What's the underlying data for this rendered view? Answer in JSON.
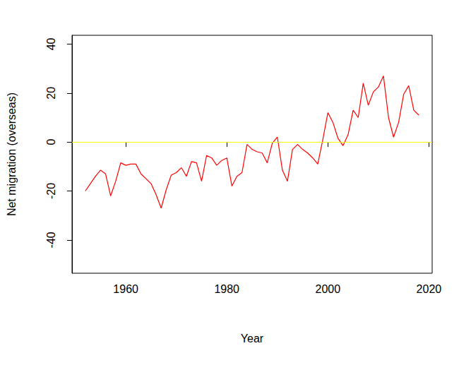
{
  "chart_data": {
    "type": "line",
    "x_label": "Year",
    "y_label": "Net migration (overseas)",
    "x": [
      1952,
      1953,
      1954,
      1955,
      1956,
      1957,
      1958,
      1959,
      1960,
      1961,
      1962,
      1963,
      1964,
      1965,
      1966,
      1967,
      1968,
      1969,
      1970,
      1971,
      1972,
      1973,
      1974,
      1975,
      1976,
      1977,
      1978,
      1979,
      1980,
      1981,
      1982,
      1983,
      1984,
      1985,
      1986,
      1987,
      1988,
      1989,
      1990,
      1991,
      1992,
      1993,
      1994,
      1995,
      1996,
      1997,
      1998,
      1999,
      2000,
      2001,
      2002,
      2003,
      2004,
      2005,
      2006,
      2007,
      2008,
      2009,
      2010,
      2011,
      2012,
      2013,
      2014,
      2015,
      2016,
      2017,
      2018
    ],
    "values": [
      -20,
      -17,
      -14,
      -11.5,
      -13,
      -22,
      -16,
      -8.5,
      -9.5,
      -9,
      -9,
      -13,
      -15,
      -17,
      -21.5,
      -27,
      -19.5,
      -13.5,
      -12.5,
      -10.5,
      -14,
      -8,
      -8.5,
      -16,
      -5.5,
      -6.5,
      -9.5,
      -7.5,
      -6.5,
      -18,
      -14,
      -12.5,
      -1,
      -3,
      -4,
      -4.5,
      -8.5,
      -0.5,
      2,
      -11.5,
      -16,
      -3,
      -1,
      -3,
      -4.5,
      -6.5,
      -9,
      1,
      12,
      8,
      1.5,
      -1.5,
      3,
      13,
      10,
      24,
      15,
      20.5,
      22.5,
      27,
      10,
      2,
      8,
      19.5,
      23,
      13,
      11
    ],
    "color": "#ff0000",
    "xlim": [
      1949.36,
      2020.64
    ],
    "xticks": [
      1960,
      1980,
      2000,
      2020
    ],
    "ylim": [
      -53.6,
      43.6
    ],
    "yticks": [
      -40,
      -20,
      0,
      20,
      40
    ],
    "hline": {
      "value": 0,
      "color": "#ffff00"
    },
    "grid": false
  }
}
